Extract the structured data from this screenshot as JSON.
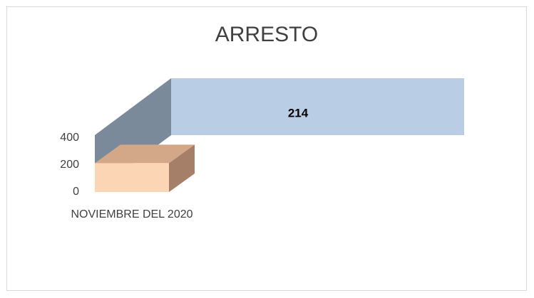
{
  "chart_data": {
    "type": "bar",
    "title": "ARRESTO",
    "categories": [
      "NOVIEMBRE DEL 2020"
    ],
    "values": [
      214
    ],
    "color": "#fcd5b4",
    "ylim": [
      0,
      400
    ],
    "yticks": [
      0,
      200,
      400
    ]
  }
}
